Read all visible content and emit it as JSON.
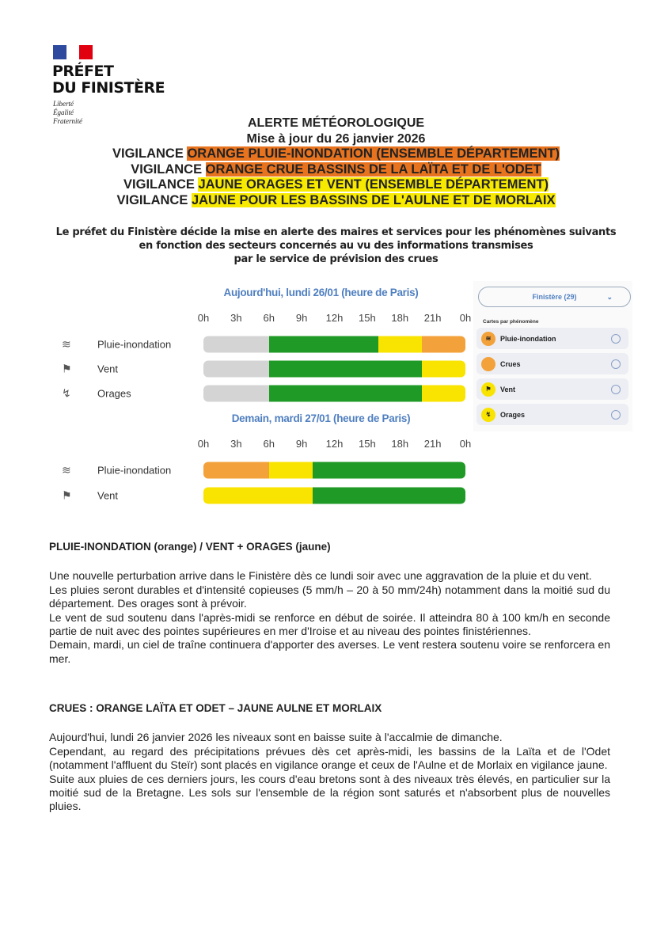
{
  "header": {
    "logo_lines": [
      "PRÉFET",
      "DU FINISTÈRE"
    ],
    "motto": [
      "Liberté",
      "Égalité",
      "Fraternité"
    ],
    "flag_colors": [
      "#2d4a9e",
      "#ffffff",
      "#e1000f"
    ]
  },
  "title": {
    "main": "ALERTE MÉTÉOROLOGIQUE",
    "update": "Mise à jour du 26 janvier 2026",
    "vigilances": [
      {
        "prefix": "VIGILANCE ",
        "text": "ORANGE PLUIE-INONDATION (ENSEMBLE DÉPARTEMENT)",
        "level": "orange"
      },
      {
        "prefix": "VIGILANCE ",
        "text": "ORANGE CRUE BASSINS DE LA LAÏTA ET DE L'ODET",
        "level": "orange"
      },
      {
        "prefix": "VIGILANCE ",
        "text": "JAUNE ORAGES ET VENT (ENSEMBLE DÉPARTEMENT)",
        "level": "jaune"
      },
      {
        "prefix": "VIGILANCE ",
        "text": "JAUNE POUR LES BASSINS DE L'AULNE ET DE MORLAIX",
        "level": "jaune"
      }
    ]
  },
  "intro": [
    "Le préfet du Finistère décide la mise en alerte des maires et services pour les phénomènes suivants",
    "en fonction des secteurs concernés au vu des informations transmises",
    "par le service de prévision des crues"
  ],
  "colors": {
    "gray": "#d4d4d4",
    "green": "#1f9a26",
    "yellow": "#f9e300",
    "orange": "#f3a13a"
  },
  "timeline": {
    "hours": [
      "0h",
      "3h",
      "6h",
      "9h",
      "12h",
      "15h",
      "18h",
      "21h",
      "0h"
    ],
    "days": [
      {
        "label": "Aujourd'hui, lundi 26/01 (heure de Paris)",
        "rows": [
          {
            "phenomenon": "Pluie-inondation",
            "icon": "rain-flood-icon",
            "segments": [
              {
                "from": 0,
                "to": 6,
                "level": "gray"
              },
              {
                "from": 6,
                "to": 16,
                "level": "green"
              },
              {
                "from": 16,
                "to": 20,
                "level": "yellow"
              },
              {
                "from": 20,
                "to": 24,
                "level": "orange"
              }
            ]
          },
          {
            "phenomenon": "Vent",
            "icon": "wind-icon",
            "segments": [
              {
                "from": 0,
                "to": 6,
                "level": "gray"
              },
              {
                "from": 6,
                "to": 20,
                "level": "green"
              },
              {
                "from": 20,
                "to": 24,
                "level": "yellow"
              }
            ]
          },
          {
            "phenomenon": "Orages",
            "icon": "storm-icon",
            "segments": [
              {
                "from": 0,
                "to": 6,
                "level": "gray"
              },
              {
                "from": 6,
                "to": 20,
                "level": "green"
              },
              {
                "from": 20,
                "to": 24,
                "level": "yellow"
              }
            ]
          }
        ]
      },
      {
        "label": "Demain, mardi 27/01 (heure de Paris)",
        "rows": [
          {
            "phenomenon": "Pluie-inondation",
            "icon": "rain-flood-icon",
            "segments": [
              {
                "from": 0,
                "to": 6,
                "level": "orange"
              },
              {
                "from": 6,
                "to": 10,
                "level": "yellow"
              },
              {
                "from": 10,
                "to": 24,
                "level": "green"
              }
            ]
          },
          {
            "phenomenon": "Vent",
            "icon": "wind-icon",
            "segments": [
              {
                "from": 0,
                "to": 10,
                "level": "yellow"
              },
              {
                "from": 10,
                "to": 24,
                "level": "green"
              }
            ]
          }
        ]
      }
    ]
  },
  "panel": {
    "select_value": "Finistère (29)",
    "subtitle": "Cartes par phénomène",
    "items": [
      {
        "label": "Pluie-inondation",
        "color": "#f3a13a",
        "icon": "rain-flood-icon"
      },
      {
        "label": "Crues",
        "color": "#f3a13a",
        "icon": "flood-icon"
      },
      {
        "label": "Vent",
        "color": "#f9e300",
        "icon": "wind-icon"
      },
      {
        "label": "Orages",
        "color": "#f9e300",
        "icon": "storm-icon"
      }
    ]
  },
  "sections": [
    {
      "heading": "PLUIE-INONDATION (orange) / VENT + ORAGES (jaune)",
      "paragraphs": [
        "Une nouvelle perturbation arrive dans le Finistère dès ce lundi soir avec une aggravation de la pluie et du vent.",
        "Les pluies seront durables et d'intensité copieuses (5 mm/h – 20 à 50 mm/24h) notamment dans la moitié sud du département. Des orages sont à prévoir.",
        "Le vent de sud soutenu dans l'après-midi se renforce en début de soirée. Il atteindra 80 à 100 km/h en seconde partie de nuit avec des pointes supérieures en mer d'Iroise et au niveau des pointes finistériennes.",
        "Demain, mardi, un ciel de traîne continuera d'apporter des averses. Le vent restera soutenu voire se renforcera en mer."
      ]
    },
    {
      "heading": "CRUES : ORANGE LAÏTA ET ODET – JAUNE AULNE ET MORLAIX",
      "paragraphs": [
        "Aujourd'hui, lundi 26 janvier 2026 les niveaux sont en baisse suite à l'accalmie de dimanche.",
        "Cependant, au regard des précipitations prévues dès cet après-midi, les bassins de la Laïta et de l'Odet (notamment l'affluent du Steïr) sont placés en vigilance orange et ceux de l'Aulne et de Morlaix en vigilance jaune.",
        "Suite aux pluies de ces derniers jours, les cours d'eau bretons sont à des niveaux très élevés, en particulier sur la moitié sud de la Bretagne. Les sols sur l'ensemble de la région sont saturés et n'absorbent plus de nouvelles pluies."
      ]
    }
  ]
}
